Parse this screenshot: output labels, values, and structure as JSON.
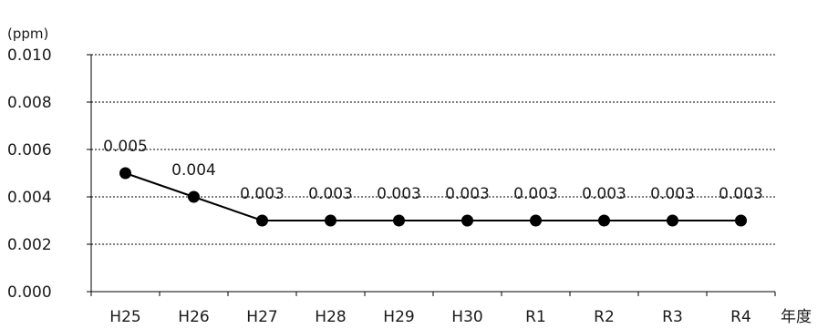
{
  "chart_data": {
    "type": "line",
    "unit_label": "(ppm)",
    "xlabel": "年度",
    "ylabel": "",
    "categories": [
      "H25",
      "H26",
      "H27",
      "H28",
      "H29",
      "H30",
      "R1",
      "R2",
      "R3",
      "R4"
    ],
    "series": [
      {
        "values": [
          0.005,
          0.004,
          0.003,
          0.003,
          0.003,
          0.003,
          0.003,
          0.003,
          0.003,
          0.003
        ],
        "labels": [
          "0.005",
          "0.004",
          "0.003",
          "0.003",
          "0.003",
          "0.003",
          "0.003",
          "0.003",
          "0.003",
          "0.003"
        ],
        "color": "#000000"
      }
    ],
    "ylim": [
      0,
      0.01
    ],
    "yticks": [
      0.0,
      0.002,
      0.004,
      0.006,
      0.008,
      0.01
    ],
    "ytick_labels": [
      "0.000",
      "0.002",
      "0.004",
      "0.006",
      "0.008",
      "0.010"
    ],
    "grid": "horizontal dashed",
    "legend": "none"
  }
}
